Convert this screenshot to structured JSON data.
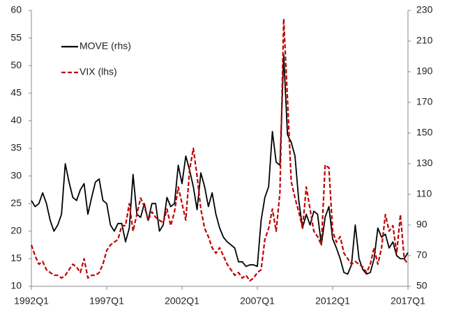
{
  "chart_data": {
    "type": "line",
    "categories": [
      "1992Q1",
      null,
      null,
      null,
      null,
      null,
      null,
      null,
      null,
      null,
      null,
      null,
      null,
      null,
      null,
      null,
      null,
      null,
      null,
      null,
      "1997Q1",
      null,
      null,
      null,
      null,
      null,
      null,
      null,
      null,
      null,
      null,
      null,
      null,
      null,
      null,
      null,
      null,
      null,
      null,
      null,
      "2002Q1",
      null,
      null,
      null,
      null,
      null,
      null,
      null,
      null,
      null,
      null,
      null,
      null,
      null,
      null,
      null,
      null,
      null,
      null,
      null,
      "2007Q1",
      null,
      null,
      null,
      null,
      null,
      null,
      null,
      null,
      null,
      null,
      null,
      null,
      null,
      null,
      null,
      null,
      null,
      null,
      null,
      "2012Q1",
      null,
      null,
      null,
      null,
      null,
      null,
      null,
      null,
      null,
      null,
      null,
      null,
      null,
      null,
      null,
      null,
      null,
      null,
      null,
      "2017Q1"
    ],
    "series": [
      {
        "name": "MOVE (rhs)",
        "color": "#000000",
        "dash": false,
        "axis": "y2",
        "values": [
          106,
          102,
          104,
          111,
          104,
          93,
          86,
          90,
          97,
          130,
          118,
          108,
          106,
          113,
          117,
          97,
          108,
          118,
          120,
          106,
          104,
          90,
          86,
          91,
          91,
          79,
          88,
          123,
          97,
          95,
          104,
          93,
          104,
          104,
          86,
          90,
          108,
          102,
          104,
          129,
          117,
          135,
          126,
          115,
          100,
          124,
          115,
          102,
          111,
          97,
          88,
          82,
          79,
          77,
          75,
          66,
          66,
          63,
          64,
          64,
          63,
          93,
          108,
          115,
          151,
          131,
          129,
          201,
          149,
          144,
          135,
          106,
          88,
          97,
          90,
          99,
          97,
          77,
          95,
          102,
          81,
          75,
          68,
          59,
          58,
          64,
          90,
          68,
          61,
          58,
          59,
          68,
          88,
          82,
          84,
          75,
          79,
          70,
          68,
          68,
          72
        ]
      },
      {
        "name": "VIX (lhs)",
        "color": "#c00000",
        "dash": true,
        "axis": "y",
        "values": [
          17.5,
          15.5,
          14,
          14.5,
          13,
          12.5,
          12,
          12,
          11.5,
          12,
          13,
          14,
          13.5,
          12.5,
          15,
          11.5,
          12,
          12,
          12.5,
          14,
          16.5,
          17.5,
          18,
          18.5,
          21,
          21,
          25,
          20,
          23,
          26,
          24.5,
          22,
          23.5,
          22.5,
          22,
          21.5,
          24,
          21,
          23.5,
          28,
          25,
          22,
          31,
          35,
          30,
          24,
          20.5,
          19,
          17,
          16,
          17,
          15.5,
          14,
          13,
          12,
          12.5,
          11.5,
          12,
          11,
          11.5,
          12.5,
          13,
          18.5,
          20.5,
          24,
          20,
          27,
          58.5,
          44,
          29,
          26,
          23.5,
          20.5,
          28,
          24,
          20,
          19,
          17.5,
          32,
          31.5,
          20,
          18,
          19,
          16,
          15,
          14,
          14.5,
          14,
          13.5,
          12.5,
          14,
          17,
          14,
          17,
          23,
          20,
          21,
          16,
          23,
          15,
          14
        ]
      }
    ],
    "ylim": [
      10,
      60
    ],
    "yticks": [
      10,
      15,
      20,
      25,
      30,
      35,
      40,
      45,
      50,
      55,
      60
    ],
    "y2lim": [
      50,
      230
    ],
    "y2ticks": [
      50,
      70,
      90,
      110,
      130,
      150,
      170,
      190,
      210,
      230
    ],
    "grid": false
  }
}
